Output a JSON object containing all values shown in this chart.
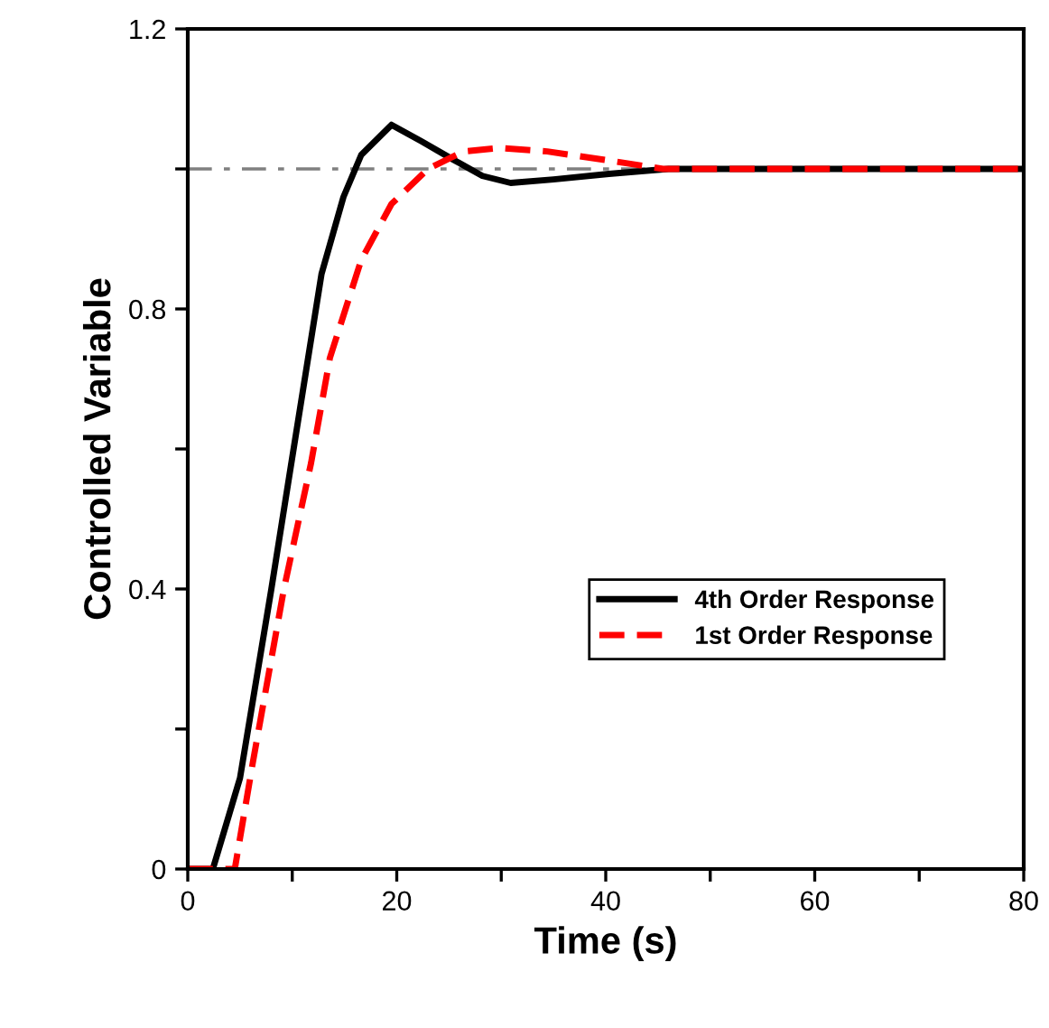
{
  "chart_data": {
    "type": "line",
    "xlabel": "Time (s)",
    "ylabel": "Controlled Variable",
    "xlim": [
      0,
      80
    ],
    "xticks": [
      0,
      {
        "value": 10,
        "label": null
      },
      20,
      {
        "value": 30,
        "label": null
      },
      40,
      {
        "value": 50,
        "label": null
      },
      60,
      {
        "value": 70,
        "label": null
      },
      80
    ],
    "ylim": [
      0,
      1.2
    ],
    "yticks": [
      0,
      {
        "value": 0.2,
        "label": null
      },
      0.4,
      {
        "value": 0.6,
        "label": null
      },
      0.8,
      {
        "value": 1.0,
        "label": null
      },
      1.2
    ],
    "grid": false,
    "legend": "right",
    "ref_lines": [
      {
        "axis": "y",
        "value": 1.0,
        "color": "#808080",
        "line_style": "dashdot"
      }
    ],
    "series": [
      {
        "name": "4th Order Response",
        "color": "#000000",
        "line_style": "solid",
        "x": [
          0,
          2.4,
          5,
          8,
          9.7,
          12.8,
          14.9,
          16.6,
          19.5,
          22.3,
          25.2,
          28.2,
          30.9,
          35,
          40.3,
          46,
          60,
          80
        ],
        "values": [
          0,
          0,
          0.13,
          0.4,
          0.56,
          0.85,
          0.96,
          1.02,
          1.063,
          1.04,
          1.015,
          0.99,
          0.98,
          0.985,
          0.993,
          1.0,
          1.0,
          1.0
        ]
      },
      {
        "name": "1st Order Response",
        "color": "#ff0000",
        "line_style": "dashed",
        "x": [
          0,
          4.5,
          6.2,
          9.2,
          11.8,
          13.6,
          16.6,
          19.5,
          23,
          26.4,
          29.9,
          34.4,
          40.3,
          45.5,
          60,
          80
        ],
        "values": [
          0,
          0,
          0.15,
          0.4,
          0.58,
          0.73,
          0.87,
          0.95,
          1.0,
          1.025,
          1.03,
          1.025,
          1.012,
          1.0,
          1.0,
          1.0
        ]
      }
    ]
  }
}
